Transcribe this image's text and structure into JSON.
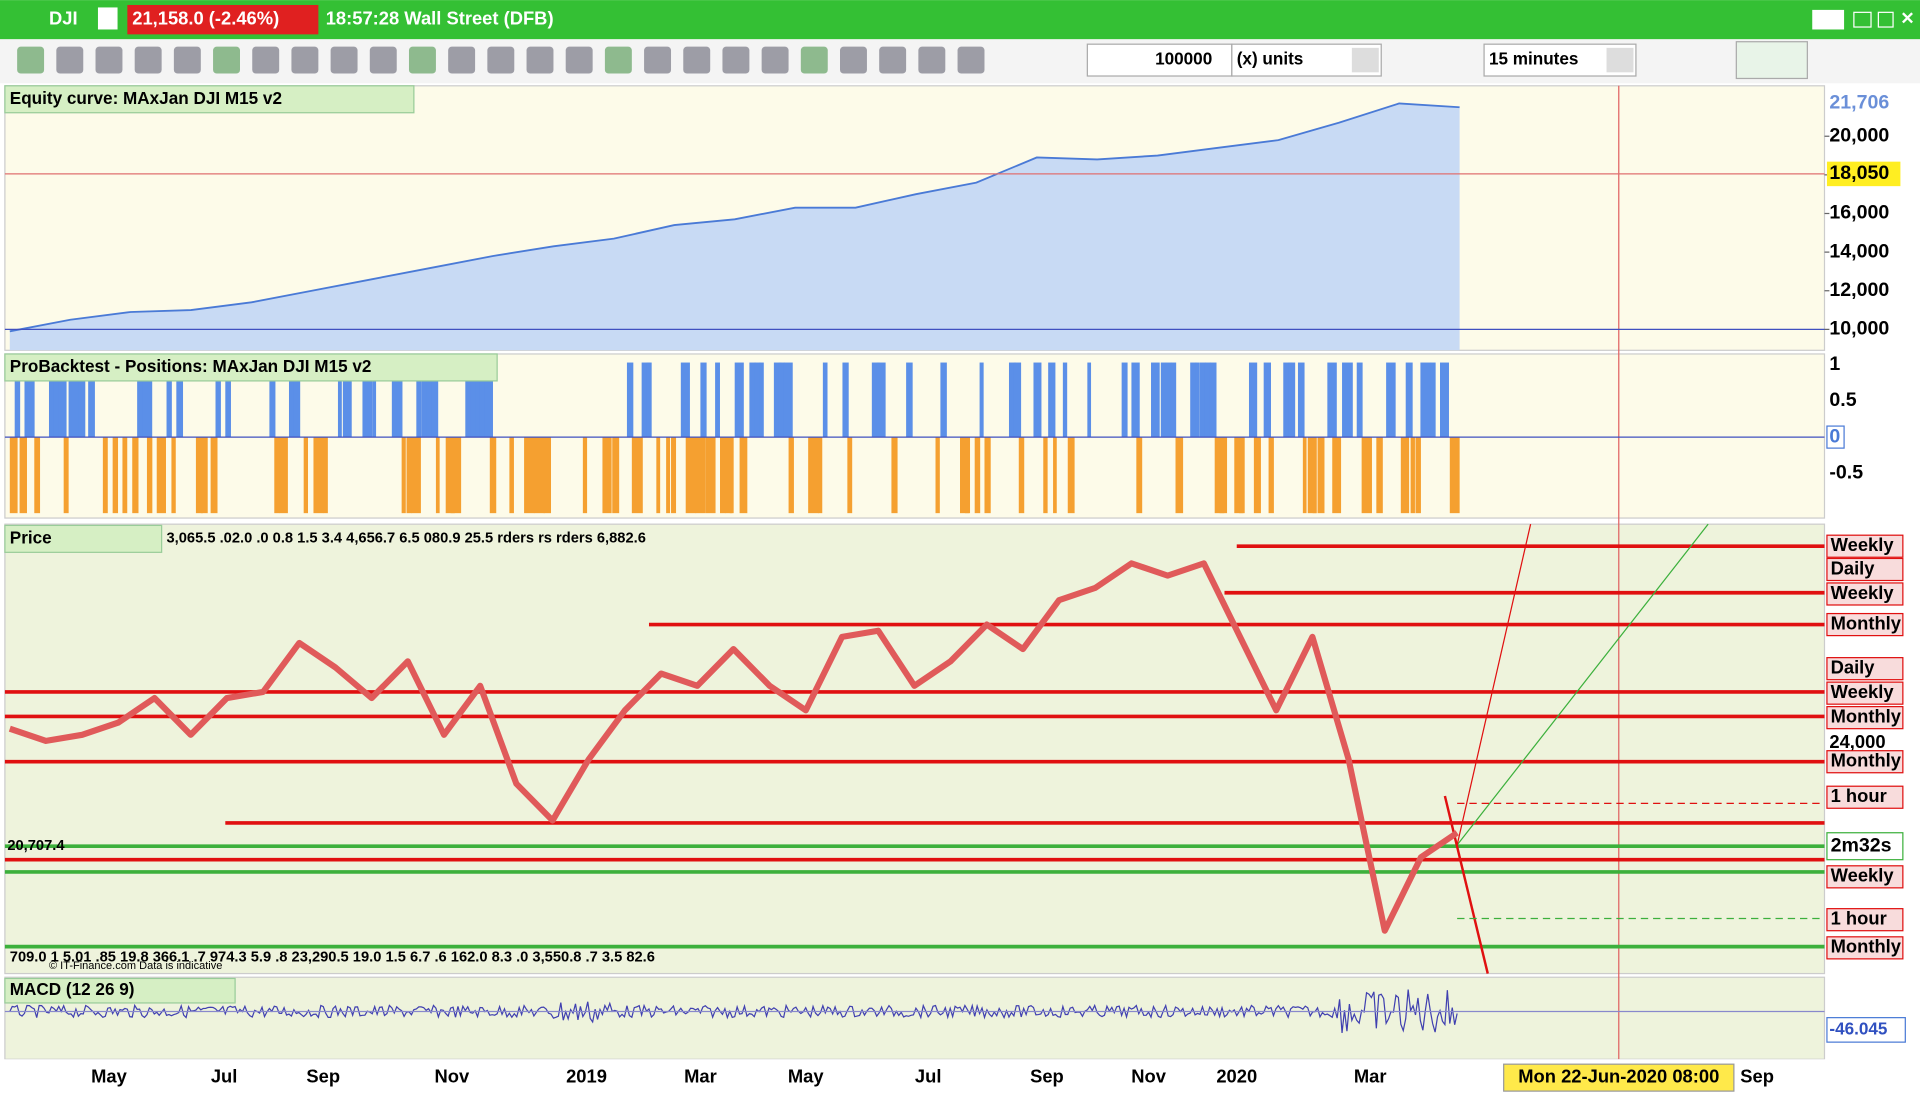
{
  "title_bar": {
    "symbol": "DJI",
    "price": "21,158.0 (-2.46%)",
    "clock": "18:57:28 Wall Street (DFB)"
  },
  "toolbar": {
    "quantity": "100000",
    "unit": "(x) units",
    "timeframe": "15 minutes"
  },
  "equity_panel": {
    "title": "Equity curve: MAxJan DJI M15 v2",
    "color": "#4a7ad6",
    "fill": "#c8daf4",
    "ylim": [
      8917,
      22611
    ],
    "yticks": [
      {
        "value": 10000,
        "label": "10,000"
      },
      {
        "value": 12000,
        "label": "12,000"
      },
      {
        "value": 14000,
        "label": "14,000"
      },
      {
        "value": 16000,
        "label": "16,000"
      },
      {
        "value": 18000,
        "label": "18,000"
      },
      {
        "value": 20000,
        "label": "20,000"
      }
    ],
    "last_value": {
      "value": 21706,
      "label": "21,706"
    },
    "marker": {
      "value": 18050,
      "label": "18,050"
    },
    "values": [
      9900,
      10500,
      10900,
      11000,
      11400,
      12000,
      12600,
      13200,
      13800,
      14300,
      14700,
      15400,
      15700,
      16300,
      16300,
      17000,
      17600,
      18900,
      18800,
      19000,
      19400,
      19800,
      20700,
      21700,
      21500
    ]
  },
  "positions_panel": {
    "title": "ProBacktest - Positions: MAxJan DJI M15 v2",
    "ylim": [
      -1.12,
      1.15
    ],
    "yticks": [
      1,
      0.5,
      -0.5
    ],
    "zero": 0
  },
  "price_panel": {
    "title": "Price",
    "color": "#e05a5a",
    "ylim": [
      16630,
      31017
    ],
    "yticks": [
      {
        "value": 24000,
        "label": "24,000"
      }
    ],
    "current": "20,707.4",
    "countdown": "2m32s",
    "values": [
      24470,
      24078,
      24274,
      24666,
      25450,
      24274,
      25450,
      25646,
      27214,
      26430,
      25450,
      26626,
      24274,
      25842,
      22706,
      21530,
      23490,
      25058,
      26234,
      25842,
      27018,
      25842,
      25058,
      27410,
      27606,
      25842,
      26626,
      27802,
      27018,
      28586,
      28978,
      29762,
      29370,
      29762,
      27410,
      25058,
      27410,
      23490,
      18002,
      20354,
      21138
    ],
    "level_labels": [
      "Weekly",
      "Daily",
      "Weekly",
      "Monthly",
      "Daily",
      "Weekly",
      "Monthly",
      "Monthly",
      "1 hour",
      "Weekly",
      "1 hour",
      "Monthly"
    ],
    "overlay_top": "3,065.5 .02.0 .0 0.8 1.5 3.4 4,656.7 6.5 080.9 25.5 rders rs rders 6,882.6",
    "overlay_bottom": "709.0 1 5.01 .85 19.8 366.1 .7 974.3 5.9 .8 23,290.5 19.0 1.5 6.7 .6 162.0 8.3 .0 3,550.8 .7 3.5 82.6",
    "copyright": "© IT-Finance.com Data is indicative"
  },
  "macd_panel": {
    "title": "MACD (12 26 9)",
    "last": "-46.045"
  },
  "x_axis": {
    "labels": [
      "May",
      "Jul",
      "Sep",
      "Nov",
      "2019",
      "Mar",
      "May",
      "Jul",
      "Sep",
      "Nov",
      "2020",
      "Mar",
      "Sep"
    ],
    "cursor": "Mon 22-Jun-2020 08:00"
  }
}
